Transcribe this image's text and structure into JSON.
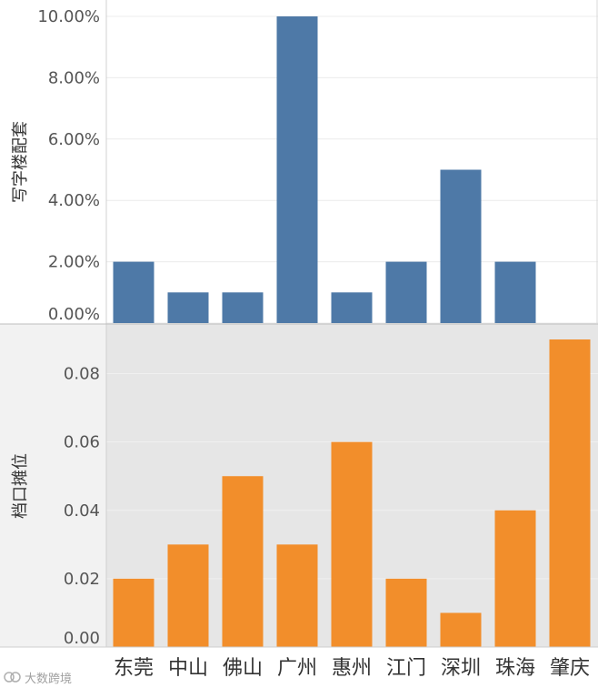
{
  "chart_data": [
    {
      "type": "bar",
      "ylabel": "写字楼配套",
      "categories": [
        "东莞",
        "中山",
        "佛山",
        "广州",
        "惠州",
        "江门",
        "深圳",
        "珠海",
        "肇庆"
      ],
      "values": [
        0.02,
        0.01,
        0.01,
        0.1,
        0.01,
        0.02,
        0.05,
        0.02,
        0.0
      ],
      "ylim": [
        0,
        0.1
      ],
      "yticks": [
        0,
        0.02,
        0.04,
        0.06,
        0.08,
        0.1
      ],
      "ytick_labels": [
        "0.00%",
        "2.00%",
        "4.00%",
        "6.00%",
        "8.00%",
        "10.00%"
      ],
      "color": "#4e79a7",
      "background": "#ffffff"
    },
    {
      "type": "bar",
      "ylabel": "档口摊位",
      "categories": [
        "东莞",
        "中山",
        "佛山",
        "广州",
        "惠州",
        "江门",
        "深圳",
        "珠海",
        "肇庆"
      ],
      "values": [
        0.02,
        0.03,
        0.05,
        0.03,
        0.06,
        0.02,
        0.01,
        0.04,
        0.09
      ],
      "ylim": [
        0,
        0.09
      ],
      "yticks": [
        0,
        0.02,
        0.04,
        0.06,
        0.08
      ],
      "ytick_labels": [
        "0.00",
        "0.02",
        "0.04",
        "0.06",
        "0.08"
      ],
      "color": "#f28e2b",
      "background": "#e6e6e6"
    }
  ],
  "watermark": "大数跨境"
}
